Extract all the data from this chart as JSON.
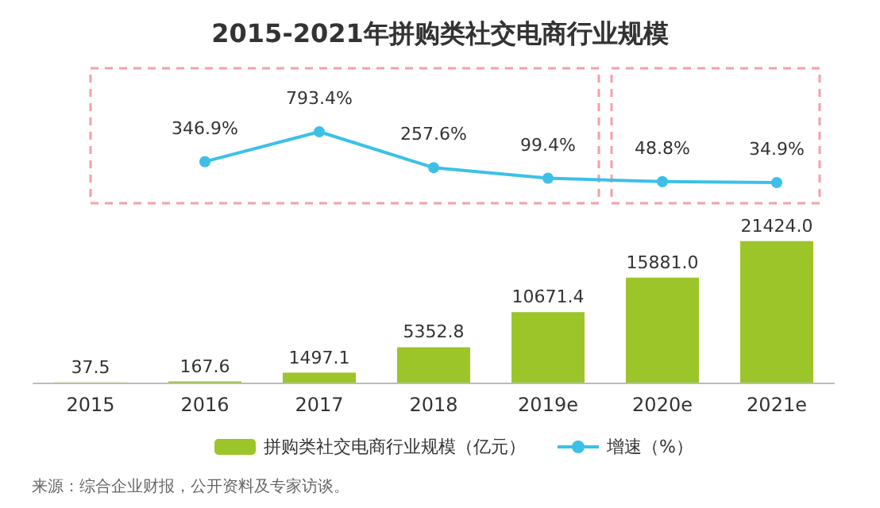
{
  "chart_data": [
    {
      "type": "line",
      "title": "2015-2021年拼购类社交电商行业规模",
      "categories": [
        null,
        null,
        null,
        null,
        null,
        null,
        null
      ],
      "series": [
        {
          "name": "增速（%）",
          "color": "#3cc0e8",
          "values": [
            null,
            346.9,
            793.4,
            257.6,
            99.4,
            48.8,
            34.9
          ],
          "value_labels": [
            null,
            "346.9%",
            "793.4%",
            "257.6%",
            "99.4%",
            "48.8%",
            "34.9%"
          ]
        }
      ],
      "tick_labels": false,
      "legend": "bottom",
      "marker": "circle",
      "line_style": "solid"
    },
    {
      "type": "bar",
      "categories": [
        "2015",
        "2016",
        "2017",
        "2018",
        "2019e",
        "2020e",
        "2021e"
      ],
      "series": [
        {
          "name": "拼购类社交电商行业规模（亿元）",
          "color": "#9bc529",
          "values": [
            37.5,
            167.6,
            1497.1,
            5352.8,
            10671.4,
            15881.0,
            21424.0
          ],
          "value_labels": [
            "37.5",
            "167.6",
            "1497.1",
            "5352.8",
            "10671.4",
            "15881.0",
            "21424.0"
          ]
        }
      ],
      "tick_labels": "x",
      "legend": "bottom",
      "annotations": [
        "来源：综合企业财报，公开资料及专家访谈。"
      ]
    }
  ]
}
